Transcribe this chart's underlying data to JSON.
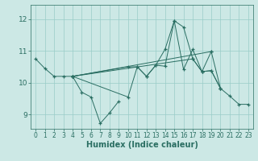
{
  "xlabel": "Humidex (Indice chaleur)",
  "bg_color": "#cce8e5",
  "grid_color": "#99ccc8",
  "line_color": "#2a6e62",
  "xlim": [
    -0.5,
    23.5
  ],
  "ylim": [
    8.55,
    12.45
  ],
  "xticks": [
    0,
    1,
    2,
    3,
    4,
    5,
    6,
    7,
    8,
    9,
    10,
    11,
    12,
    13,
    14,
    15,
    16,
    17,
    18,
    19,
    20,
    21,
    22,
    23
  ],
  "yticks": [
    9,
    10,
    11,
    12
  ],
  "lines": [
    [
      [
        0,
        10.75
      ],
      [
        1,
        10.45
      ],
      [
        2,
        10.2
      ],
      [
        3,
        10.2
      ],
      [
        4,
        10.2
      ],
      [
        5,
        9.7
      ],
      [
        6,
        9.55
      ],
      [
        7,
        8.72
      ],
      [
        8,
        9.05
      ],
      [
        9,
        9.42
      ]
    ],
    [
      [
        4,
        10.2
      ],
      [
        10,
        9.55
      ],
      [
        11,
        10.5
      ],
      [
        12,
        10.2
      ],
      [
        13,
        10.55
      ],
      [
        14,
        10.52
      ],
      [
        15,
        11.95
      ],
      [
        16,
        11.75
      ],
      [
        17,
        10.75
      ],
      [
        18,
        10.35
      ],
      [
        19,
        10.38
      ],
      [
        20,
        9.82
      ],
      [
        21,
        9.58
      ],
      [
        22,
        9.32
      ],
      [
        23,
        9.32
      ]
    ],
    [
      [
        4,
        10.2
      ],
      [
        10,
        10.5
      ],
      [
        11,
        10.5
      ],
      [
        12,
        10.2
      ],
      [
        13,
        10.55
      ],
      [
        14,
        11.05
      ],
      [
        15,
        11.95
      ],
      [
        16,
        10.42
      ],
      [
        17,
        11.05
      ],
      [
        18,
        10.35
      ],
      [
        19,
        10.98
      ]
    ],
    [
      [
        4,
        10.2
      ],
      [
        19,
        10.98
      ],
      [
        20,
        9.82
      ]
    ],
    [
      [
        4,
        10.2
      ],
      [
        17,
        10.75
      ],
      [
        18,
        10.35
      ],
      [
        19,
        10.38
      ],
      [
        20,
        9.82
      ]
    ]
  ]
}
